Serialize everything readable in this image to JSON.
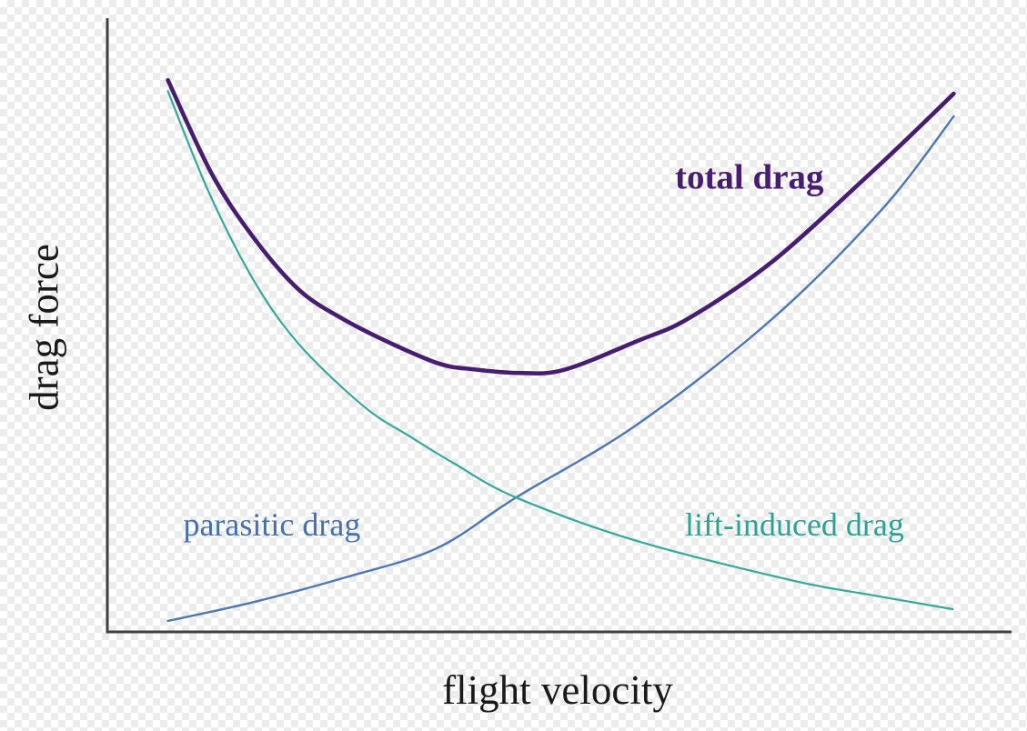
{
  "figure": {
    "title": "",
    "xlabel": "flight velocity",
    "ylabel": "drag force"
  },
  "chart_data": {
    "type": "line",
    "title": "",
    "xlabel": "flight velocity",
    "ylabel": "drag force",
    "xlim": [
      0,
      1
    ],
    "ylim": [
      0,
      1
    ],
    "grid": false,
    "ticks": "none",
    "legend_position": "inline-annotations",
    "axis_color": "#3f3f3f",
    "axis_line_width": 3,
    "series": [
      {
        "name": "parasitic drag",
        "color": "#4f78b2",
        "line_width": 2.4,
        "x": [
          0.067,
          0.163,
          0.264,
          0.364,
          0.452,
          0.586,
          0.736,
          0.857,
          0.936
        ],
        "y": [
          0.018,
          0.049,
          0.089,
          0.136,
          0.219,
          0.338,
          0.511,
          0.689,
          0.84
        ]
      },
      {
        "name": "lift-induced drag",
        "color": "#33a99c",
        "line_width": 2.2,
        "x": [
          0.067,
          0.113,
          0.163,
          0.213,
          0.284,
          0.334,
          0.384,
          0.452,
          0.586,
          0.757,
          0.837,
          0.935
        ],
        "y": [
          0.881,
          0.714,
          0.57,
          0.467,
          0.367,
          0.319,
          0.274,
          0.219,
          0.148,
          0.084,
          0.062,
          0.037
        ]
      },
      {
        "name": "total drag",
        "color": "#471d70",
        "line_width": 4.6,
        "x": [
          0.067,
          0.116,
          0.163,
          0.213,
          0.264,
          0.314,
          0.367,
          0.404,
          0.455,
          0.505,
          0.586,
          0.643,
          0.736,
          0.837,
          0.887,
          0.936
        ],
        "y": [
          0.899,
          0.745,
          0.64,
          0.556,
          0.507,
          0.47,
          0.437,
          0.428,
          0.422,
          0.427,
          0.474,
          0.511,
          0.604,
          0.738,
          0.807,
          0.877
        ]
      }
    ],
    "annotations": [
      {
        "text": "total drag",
        "color": "#471d70",
        "bold": true,
        "x": 0.71,
        "y": 0.741
      },
      {
        "text": "parasitic drag",
        "color": "#4470af",
        "bold": false,
        "x": 0.182,
        "y": 0.175
      },
      {
        "text": "lift-induced drag",
        "color": "#2ba394",
        "bold": false,
        "x": 0.76,
        "y": 0.175
      }
    ]
  }
}
